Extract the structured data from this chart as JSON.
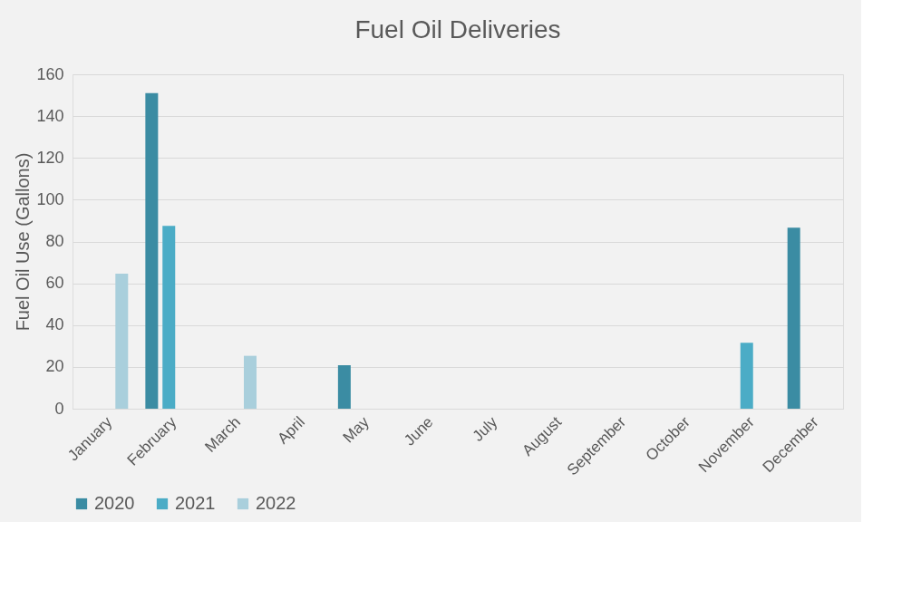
{
  "chart_data": {
    "type": "bar",
    "title": "Fuel Oil Deliveries",
    "ylabel": "Fuel Oil Use (Gallons)",
    "categories": [
      "January",
      "February",
      "March",
      "April",
      "May",
      "June",
      "July",
      "August",
      "September",
      "October",
      "November",
      "December"
    ],
    "series": [
      {
        "name": "2020",
        "color": "#3b8ca3",
        "values": [
          null,
          151,
          null,
          null,
          20.8,
          null,
          null,
          null,
          null,
          null,
          null,
          86.6
        ]
      },
      {
        "name": "2021",
        "color": "#4bacc6",
        "values": [
          null,
          87.5,
          null,
          null,
          null,
          null,
          null,
          null,
          null,
          null,
          31.5,
          null
        ]
      },
      {
        "name": "2022",
        "color": "#a9cfdc",
        "values": [
          64.6,
          null,
          25.3,
          null,
          null,
          null,
          null,
          null,
          null,
          null,
          null,
          null
        ]
      }
    ],
    "ylim": [
      0,
      160
    ],
    "yticks": [
      0,
      20,
      40,
      60,
      80,
      100,
      120,
      140,
      160
    ],
    "grid": "y",
    "legend": "bottom"
  }
}
